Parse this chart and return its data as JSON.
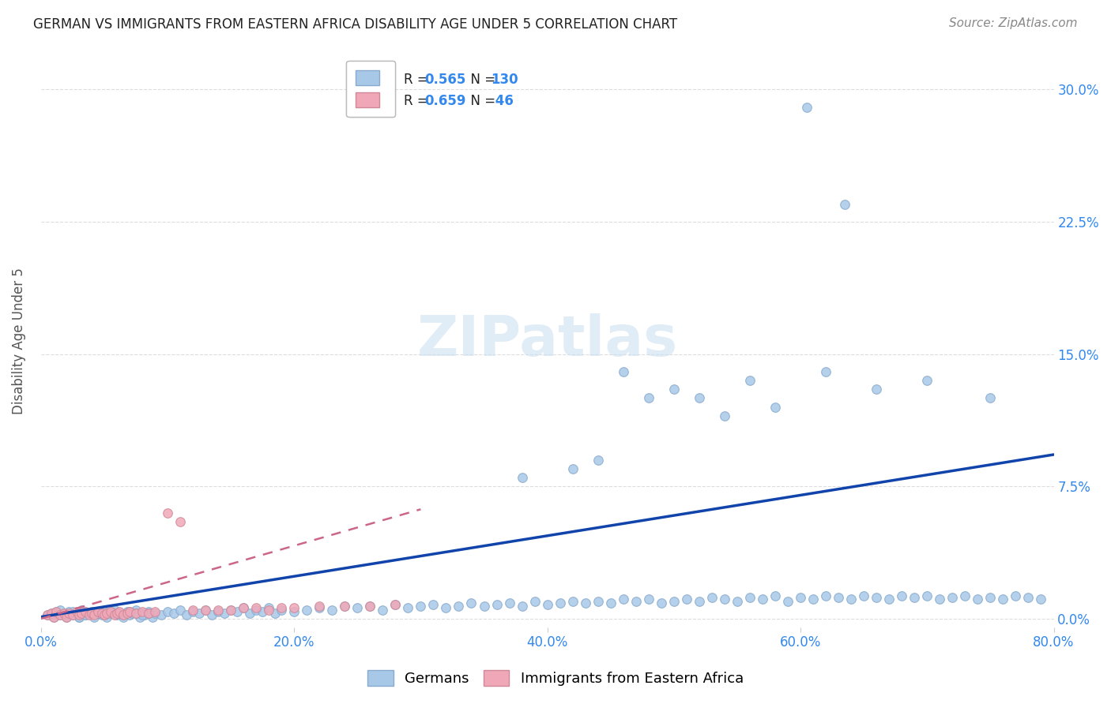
{
  "title": "GERMAN VS IMMIGRANTS FROM EASTERN AFRICA DISABILITY AGE UNDER 5 CORRELATION CHART",
  "source": "Source: ZipAtlas.com",
  "ylabel": "Disability Age Under 5",
  "xlim": [
    0.0,
    0.8
  ],
  "ylim": [
    -0.005,
    0.32
  ],
  "ytick_labels": [
    "0.0%",
    "7.5%",
    "15.0%",
    "22.5%",
    "30.0%"
  ],
  "ytick_values": [
    0.0,
    0.075,
    0.15,
    0.225,
    0.3
  ],
  "xtick_labels": [
    "0.0%",
    "20.0%",
    "40.0%",
    "60.0%",
    "80.0%"
  ],
  "xtick_values": [
    0.0,
    0.2,
    0.4,
    0.6,
    0.8
  ],
  "legend_labels": [
    "Germans",
    "Immigrants from Eastern Africa"
  ],
  "legend_R_blue": "0.565",
  "legend_N_blue": "130",
  "legend_R_pink": "0.659",
  "legend_N_pink": "46",
  "blue_face_color": "#a8c8e8",
  "pink_face_color": "#f0a8b8",
  "blue_edge_color": "#88aacc",
  "pink_edge_color": "#d08898",
  "blue_line_color": "#1144aa",
  "pink_line_color": "#cc6688",
  "tick_color": "#3388ee",
  "grid_color": "#dddddd",
  "axis_label_color": "#555555",
  "title_color": "#222222",
  "source_color": "#888888",
  "background_color": "#ffffff",
  "watermark_color": "#cce0f0",
  "watermark_text": "ZIPatlas",
  "blue_scatter_x": [
    0.005,
    0.008,
    0.01,
    0.012,
    0.015,
    0.018,
    0.02,
    0.022,
    0.025,
    0.028,
    0.03,
    0.032,
    0.035,
    0.038,
    0.04,
    0.042,
    0.045,
    0.048,
    0.05,
    0.052,
    0.055,
    0.058,
    0.06,
    0.062,
    0.065,
    0.068,
    0.07,
    0.072,
    0.075,
    0.078,
    0.08,
    0.082,
    0.085,
    0.088,
    0.09,
    0.095,
    0.1,
    0.105,
    0.11,
    0.115,
    0.12,
    0.125,
    0.13,
    0.135,
    0.14,
    0.145,
    0.15,
    0.155,
    0.16,
    0.165,
    0.17,
    0.175,
    0.18,
    0.185,
    0.19,
    0.2,
    0.21,
    0.22,
    0.23,
    0.24,
    0.25,
    0.26,
    0.27,
    0.28,
    0.29,
    0.3,
    0.31,
    0.32,
    0.33,
    0.34,
    0.35,
    0.36,
    0.37,
    0.38,
    0.39,
    0.4,
    0.41,
    0.42,
    0.43,
    0.44,
    0.45,
    0.46,
    0.47,
    0.48,
    0.49,
    0.5,
    0.51,
    0.52,
    0.53,
    0.54,
    0.55,
    0.56,
    0.57,
    0.58,
    0.59,
    0.6,
    0.61,
    0.62,
    0.63,
    0.64,
    0.65,
    0.66,
    0.67,
    0.68,
    0.69,
    0.7,
    0.71,
    0.72,
    0.73,
    0.74,
    0.75,
    0.76,
    0.77,
    0.78,
    0.79,
    0.01,
    0.02,
    0.025,
    0.03,
    0.035,
    0.015,
    0.045,
    0.05,
    0.055,
    0.06,
    0.065,
    0.07,
    0.075,
    0.08,
    0.085
  ],
  "blue_scatter_y": [
    0.002,
    0.003,
    0.001,
    0.004,
    0.002,
    0.003,
    0.001,
    0.004,
    0.002,
    0.003,
    0.001,
    0.005,
    0.002,
    0.003,
    0.004,
    0.001,
    0.003,
    0.002,
    0.004,
    0.001,
    0.003,
    0.005,
    0.002,
    0.003,
    0.001,
    0.004,
    0.002,
    0.003,
    0.005,
    0.001,
    0.003,
    0.002,
    0.004,
    0.001,
    0.003,
    0.002,
    0.004,
    0.003,
    0.005,
    0.002,
    0.004,
    0.003,
    0.005,
    0.002,
    0.004,
    0.003,
    0.005,
    0.004,
    0.006,
    0.003,
    0.005,
    0.004,
    0.006,
    0.003,
    0.005,
    0.004,
    0.005,
    0.006,
    0.005,
    0.007,
    0.006,
    0.007,
    0.005,
    0.008,
    0.006,
    0.007,
    0.008,
    0.006,
    0.007,
    0.009,
    0.007,
    0.008,
    0.009,
    0.007,
    0.01,
    0.008,
    0.009,
    0.01,
    0.009,
    0.01,
    0.009,
    0.011,
    0.01,
    0.011,
    0.009,
    0.01,
    0.011,
    0.01,
    0.012,
    0.011,
    0.01,
    0.012,
    0.011,
    0.013,
    0.01,
    0.012,
    0.011,
    0.013,
    0.012,
    0.011,
    0.013,
    0.012,
    0.011,
    0.013,
    0.012,
    0.013,
    0.011,
    0.012,
    0.013,
    0.011,
    0.012,
    0.011,
    0.013,
    0.012,
    0.011,
    0.003,
    0.002,
    0.004,
    0.001,
    0.002,
    0.005,
    0.003,
    0.002,
    0.004,
    0.003,
    0.002,
    0.004,
    0.003,
    0.002,
    0.003
  ],
  "blue_outlier_x": [
    0.605,
    0.635,
    0.5,
    0.52,
    0.56,
    0.58,
    0.62,
    0.66,
    0.7,
    0.75,
    0.46,
    0.48,
    0.54,
    0.44,
    0.42,
    0.38
  ],
  "blue_outlier_y": [
    0.29,
    0.235,
    0.13,
    0.125,
    0.135,
    0.12,
    0.14,
    0.13,
    0.135,
    0.125,
    0.14,
    0.125,
    0.115,
    0.09,
    0.085,
    0.08
  ],
  "pink_scatter_x": [
    0.005,
    0.008,
    0.01,
    0.012,
    0.015,
    0.018,
    0.02,
    0.022,
    0.025,
    0.028,
    0.03,
    0.032,
    0.035,
    0.038,
    0.04,
    0.042,
    0.045,
    0.048,
    0.05,
    0.052,
    0.055,
    0.058,
    0.06,
    0.062,
    0.065,
    0.068,
    0.07,
    0.075,
    0.08,
    0.085,
    0.09,
    0.1,
    0.11,
    0.12,
    0.13,
    0.14,
    0.15,
    0.16,
    0.17,
    0.18,
    0.19,
    0.2,
    0.22,
    0.24,
    0.26,
    0.28
  ],
  "pink_scatter_y": [
    0.002,
    0.003,
    0.001,
    0.004,
    0.002,
    0.003,
    0.001,
    0.003,
    0.002,
    0.004,
    0.002,
    0.003,
    0.004,
    0.002,
    0.003,
    0.002,
    0.004,
    0.003,
    0.002,
    0.003,
    0.004,
    0.002,
    0.003,
    0.004,
    0.002,
    0.003,
    0.004,
    0.003,
    0.004,
    0.003,
    0.004,
    0.06,
    0.055,
    0.005,
    0.005,
    0.005,
    0.005,
    0.006,
    0.006,
    0.005,
    0.006,
    0.006,
    0.007,
    0.007,
    0.007,
    0.008
  ],
  "blue_line_x": [
    0.0,
    0.8
  ],
  "blue_line_y": [
    0.001,
    0.093
  ],
  "pink_line_x": [
    0.0,
    0.3
  ],
  "pink_line_y": [
    0.0,
    0.062
  ]
}
